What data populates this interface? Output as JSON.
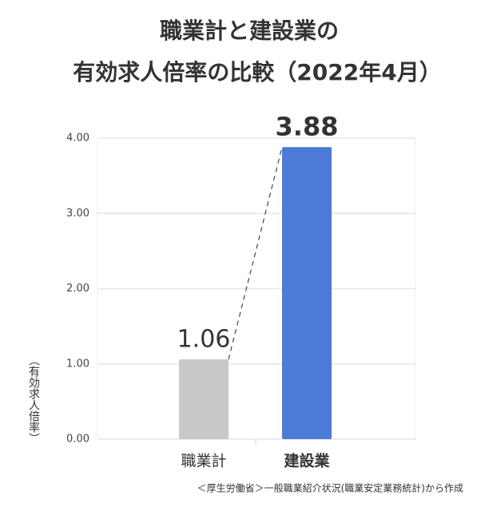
{
  "chart_data": {
    "type": "bar",
    "title": [
      "職業計と建設業の",
      "有効求人倍率の比較（2022年4月）"
    ],
    "y_label": "（有効求人倍率）",
    "categories": [
      "職業計",
      "建設業"
    ],
    "values": [
      1.06,
      3.88
    ],
    "colors": [
      "#c8c8c8",
      "#4a7bd6"
    ],
    "value_label_colors": [
      "#b8b8b8",
      "#4a7bd6"
    ],
    "ylim": [
      0,
      4
    ],
    "yticks": [
      {
        "value": 0,
        "label": "0.00"
      },
      {
        "value": 1,
        "label": "1.00"
      },
      {
        "value": 2,
        "label": "2.00"
      },
      {
        "value": 3,
        "label": "3.00"
      },
      {
        "value": 4,
        "label": "4.00"
      }
    ],
    "grid": true,
    "source": "＜厚生労働省＞一般職業紹介状況(職業安定業務統計)から作成"
  }
}
